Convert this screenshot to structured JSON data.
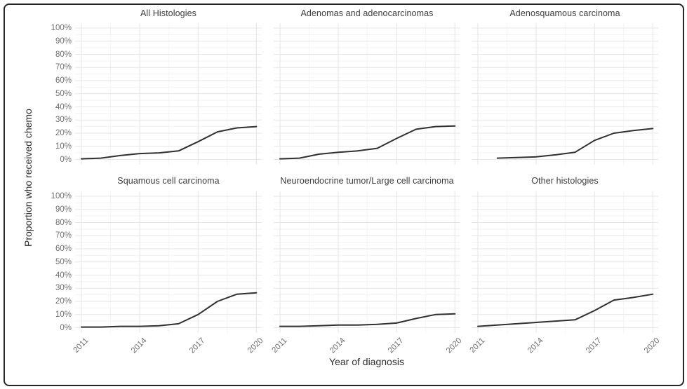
{
  "figure": {
    "x_axis_title": "Year of diagnosis",
    "y_axis_title": "Proportion who received chemo"
  },
  "chart_data": {
    "type": "line",
    "title": "",
    "xlabel": "Year of diagnosis",
    "ylabel": "Proportion who received chemo",
    "x": [
      2011,
      2012,
      2013,
      2014,
      2015,
      2016,
      2017,
      2018,
      2019,
      2020
    ],
    "xlim": [
      2010.7,
      2020.3
    ],
    "ylim": [
      0,
      100
    ],
    "grid": true,
    "legend": "none",
    "line_color": "#303030",
    "major_grid_color": "#e6e6e6",
    "minor_grid_color": "#f3f3f3",
    "x_ticks": [
      {
        "value": 2011,
        "label": "2011"
      },
      {
        "value": 2014,
        "label": "2014"
      },
      {
        "value": 2017,
        "label": "2017"
      },
      {
        "value": 2020,
        "label": "2020"
      }
    ],
    "x_minor_ticks": [
      2012.5,
      2015.5,
      2018.5
    ],
    "y_ticks": [
      {
        "value": 0,
        "label": "0%"
      },
      {
        "value": 10,
        "label": "10%"
      },
      {
        "value": 20,
        "label": "20%"
      },
      {
        "value": 30,
        "label": "30%"
      },
      {
        "value": 40,
        "label": "40%"
      },
      {
        "value": 50,
        "label": "50%"
      },
      {
        "value": 60,
        "label": "60%"
      },
      {
        "value": 70,
        "label": "70%"
      },
      {
        "value": 80,
        "label": "80%"
      },
      {
        "value": 90,
        "label": "90%"
      },
      {
        "value": 100,
        "label": "100%"
      }
    ],
    "facets": [
      {
        "title": "All Histologies",
        "values": [
          0.5,
          1,
          3,
          4.5,
          5,
          6.5,
          13.5,
          21,
          24,
          25
        ]
      },
      {
        "title": "Adenomas and adenocarcinomas",
        "values": [
          0.5,
          1,
          4,
          5.5,
          6.5,
          8.5,
          16,
          23,
          25,
          25.5
        ]
      },
      {
        "title": "Adenosquamous carcinoma",
        "values": [
          null,
          1,
          1.5,
          2,
          3.5,
          5.5,
          14.5,
          20,
          22,
          23.5
        ]
      },
      {
        "title": "Squamous cell carcinoma",
        "values": [
          0.5,
          0.5,
          1,
          1,
          1.5,
          3,
          10,
          20,
          25.5,
          26.5
        ]
      },
      {
        "title": "Neuroendocrine tumor/Large cell carcinoma",
        "values": [
          1,
          1,
          1.5,
          2,
          2,
          2.5,
          3.5,
          7,
          10,
          10.5
        ]
      },
      {
        "title": "Other histologies",
        "values": [
          1,
          2,
          3,
          4,
          5,
          6,
          13,
          21,
          23,
          25.5
        ]
      }
    ]
  }
}
